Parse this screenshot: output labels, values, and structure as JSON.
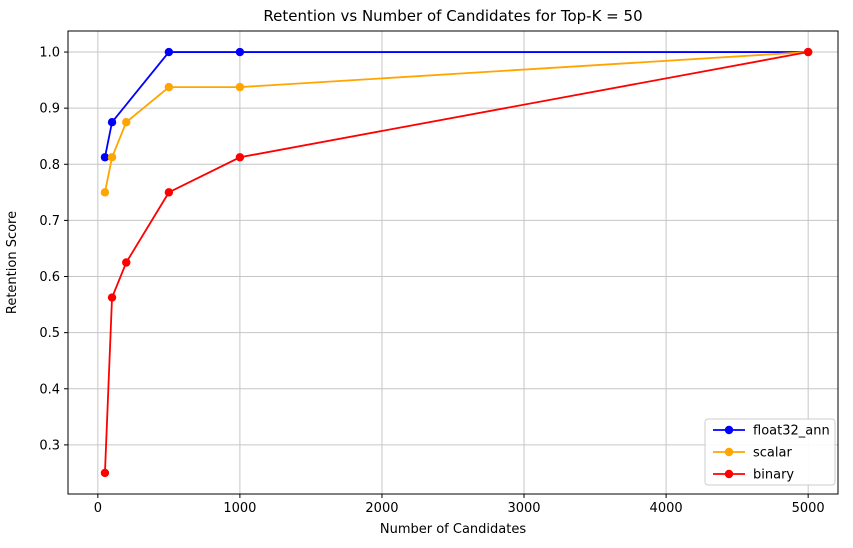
{
  "chart_data": {
    "type": "line",
    "title": "Retention vs Number of Candidates for Top-K = 50",
    "xlabel": "Number of Candidates",
    "ylabel": "Retention Score",
    "xlim": [
      -210,
      5210
    ],
    "ylim": [
      0.2125,
      1.0375
    ],
    "grid": true,
    "legend_position": "lower right",
    "background_color": "#ffffff",
    "grid_color": "#c6c6c6",
    "xticks": [
      {
        "v": 0,
        "label": "0"
      },
      {
        "v": 1000,
        "label": "1000"
      },
      {
        "v": 2000,
        "label": "2000"
      },
      {
        "v": 3000,
        "label": "3000"
      },
      {
        "v": 4000,
        "label": "4000"
      },
      {
        "v": 5000,
        "label": "5000"
      }
    ],
    "yticks": [
      {
        "v": 0.3,
        "label": "0.3"
      },
      {
        "v": 0.4,
        "label": "0.4"
      },
      {
        "v": 0.5,
        "label": "0.5"
      },
      {
        "v": 0.6,
        "label": "0.6"
      },
      {
        "v": 0.7,
        "label": "0.7"
      },
      {
        "v": 0.8,
        "label": "0.8"
      },
      {
        "v": 0.9,
        "label": "0.9"
      },
      {
        "v": 1.0,
        "label": "1.0"
      }
    ],
    "series": [
      {
        "name": "float32_ann",
        "label": "float32_ann",
        "color": "#0000ff",
        "x": [
          50,
          100,
          500,
          1000,
          5000
        ],
        "y": [
          0.8125,
          0.875,
          1.0,
          1.0,
          1.0
        ]
      },
      {
        "name": "scalar",
        "label": "scalar",
        "color": "#ffa500",
        "x": [
          50,
          100,
          200,
          500,
          1000,
          5000
        ],
        "y": [
          0.75,
          0.8125,
          0.875,
          0.9375,
          0.9375,
          1.0
        ]
      },
      {
        "name": "binary",
        "label": "binary",
        "color": "#ff0000",
        "x": [
          50,
          100,
          200,
          500,
          1000,
          5000
        ],
        "y": [
          0.25,
          0.5625,
          0.625,
          0.75,
          0.8125,
          1.0
        ]
      }
    ]
  }
}
